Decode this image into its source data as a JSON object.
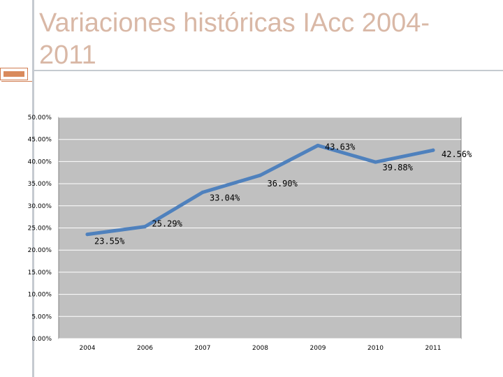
{
  "slide": {
    "title": "Variaciones históricas IAcc 2004-2011"
  },
  "colors": {
    "title": "#d9b8a6",
    "accent": "#d98a5c",
    "plot_bg": "#c0c0c0",
    "line": "#4f81bd"
  },
  "chart_data": {
    "type": "line",
    "title": "",
    "xlabel": "",
    "ylabel": "",
    "categories": [
      "2004",
      "2006",
      "2007",
      "2008",
      "2009",
      "2010",
      "2011"
    ],
    "series": [
      {
        "name": "IAcc",
        "values": [
          23.55,
          25.29,
          33.04,
          36.9,
          43.63,
          39.88,
          42.56
        ]
      }
    ],
    "data_labels": [
      "23.55%",
      "25.29%",
      "33.04%",
      "36.90%",
      "43.63%",
      "39.88%",
      "42.56%"
    ],
    "y_ticks": [
      "0.00%",
      "5.00%",
      "10.00%",
      "15.00%",
      "20.00%",
      "25.00%",
      "30.00%",
      "35.00%",
      "40.00%",
      "45.00%",
      "50.00%"
    ],
    "ylim": [
      0,
      50
    ],
    "grid": true,
    "legend": "none"
  }
}
